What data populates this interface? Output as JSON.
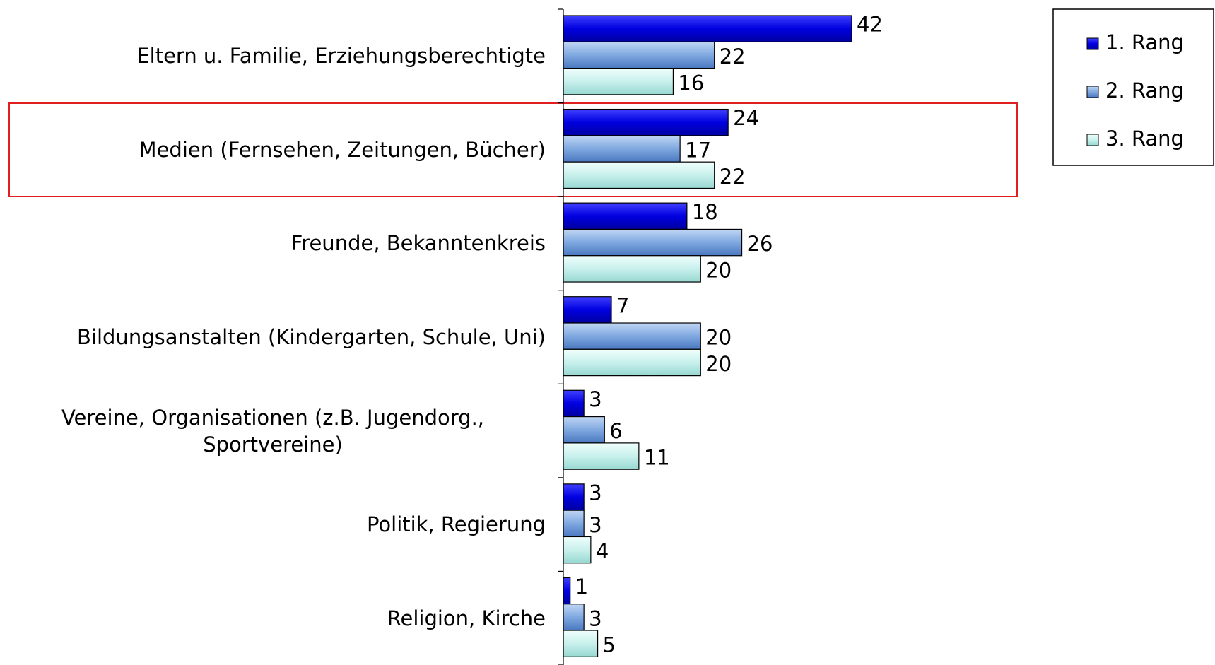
{
  "chart_data": {
    "type": "barh",
    "categories": [
      "Eltern u. Familie, Erziehungsberechtigte",
      "Medien (Fernsehen, Zeitungen, Bücher)",
      "Freunde, Bekanntenkreis",
      "Bildungsanstalten (Kindergarten, Schule, Uni)",
      "Vereine, Organisationen (z.B. Jugendorg., Sportvereine)",
      "Politik, Regierung",
      "Religion, Kirche"
    ],
    "series": [
      {
        "name": "1. Rang",
        "color": "#0000e0",
        "values": [
          42,
          24,
          18,
          7,
          3,
          3,
          1
        ]
      },
      {
        "name": "2. Rang",
        "color": "#7fa8e0",
        "values": [
          22,
          17,
          26,
          20,
          6,
          3,
          3
        ]
      },
      {
        "name": "3. Rang",
        "color": "#c8f0ec",
        "values": [
          16,
          22,
          20,
          20,
          11,
          4,
          5
        ]
      }
    ],
    "legend": "top-right"
  }
}
